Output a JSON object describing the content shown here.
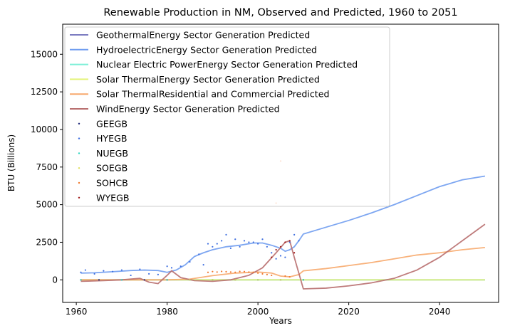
{
  "chart_data": {
    "type": "line",
    "title": "Renewable Production in NM, Observed and Predicted, 1960 to 2051",
    "xlabel": "Years",
    "ylabel": "BTU (Billions)",
    "xlim": [
      1957,
      2053
    ],
    "ylim": [
      -1500,
      17000
    ],
    "xticks": [
      1960,
      1980,
      2000,
      2020,
      2040
    ],
    "yticks": [
      0,
      2500,
      5000,
      7500,
      10000,
      12500,
      15000
    ],
    "legend_position": "upper-left",
    "grid": false,
    "series": [
      {
        "name": "GeothermalEnergy Sector Generation Predicted",
        "kind": "line",
        "color": "#7b7bc0",
        "x": [
          1961,
          1970,
          1980,
          1990,
          2000,
          2010,
          2020,
          2030,
          2040,
          2050
        ],
        "y": [
          0,
          0,
          0,
          0,
          0,
          0,
          0,
          0,
          0,
          0
        ]
      },
      {
        "name": "HydroelectricEnergy Sector Generation Predicted",
        "kind": "line",
        "color": "#6f9cf0",
        "x": [
          1961,
          1964,
          1968,
          1972,
          1975,
          1978,
          1980,
          1982,
          1984,
          1986,
          1988,
          1990,
          1993,
          1996,
          1999,
          2001,
          2003,
          2005,
          2006,
          2007,
          2008,
          2009,
          2010,
          2015,
          2020,
          2025,
          2030,
          2035,
          2040,
          2045,
          2050
        ],
        "y": [
          450,
          470,
          540,
          620,
          650,
          620,
          500,
          650,
          1000,
          1550,
          1800,
          2000,
          2200,
          2300,
          2450,
          2450,
          2300,
          2100,
          1900,
          2000,
          2200,
          2600,
          3050,
          3500,
          3950,
          4450,
          5000,
          5600,
          6200,
          6650,
          6900
        ]
      },
      {
        "name": "Nuclear Electric PowerEnergy Sector Generation Predicted",
        "kind": "line",
        "color": "#7fefd8",
        "x": [
          1961,
          1970,
          1980,
          1990,
          2000,
          2010,
          2020,
          2030,
          2040,
          2050
        ],
        "y": [
          0,
          0,
          0,
          0,
          0,
          0,
          0,
          0,
          0,
          0
        ]
      },
      {
        "name": "Solar ThermalEnergy Sector Generation Predicted",
        "kind": "line",
        "color": "#e4f37a",
        "x": [
          1961,
          1970,
          1980,
          1990,
          2000,
          2010,
          2020,
          2030,
          2040,
          2050
        ],
        "y": [
          0,
          0,
          0,
          0,
          0,
          0,
          0,
          0,
          0,
          0
        ]
      },
      {
        "name": "Solar ThermalResidential and Commercial Predicted",
        "kind": "line",
        "color": "#f7a86b",
        "x": [
          1961,
          1970,
          1980,
          1985,
          1990,
          1995,
          2000,
          2003,
          2005,
          2007,
          2009,
          2010,
          2015,
          2020,
          2025,
          2030,
          2035,
          2040,
          2045,
          2050
        ],
        "y": [
          0,
          0,
          0,
          50,
          280,
          450,
          520,
          450,
          250,
          200,
          350,
          600,
          750,
          950,
          1150,
          1400,
          1650,
          1800,
          2000,
          2150
        ]
      },
      {
        "name": "WindEnergy Sector Generation Predicted",
        "kind": "line",
        "color": "#b86e6e",
        "x": [
          1961,
          1966,
          1970,
          1974,
          1976,
          1978,
          1980,
          1981,
          1983,
          1986,
          1990,
          1994,
          1998,
          2001,
          2004,
          2006,
          2007,
          2008,
          2010,
          2015,
          2020,
          2025,
          2030,
          2035,
          2040,
          2045,
          2050
        ],
        "y": [
          -100,
          -50,
          0,
          100,
          -150,
          -250,
          300,
          600,
          150,
          -50,
          -100,
          0,
          300,
          800,
          1800,
          2500,
          2600,
          1500,
          -600,
          -550,
          -400,
          -200,
          100,
          650,
          1500,
          2600,
          3700
        ]
      },
      {
        "name": "GEEGB",
        "kind": "scatter",
        "color": "#1f2a7a",
        "x": [
          1961,
          1965,
          1970,
          1975,
          1980,
          1985,
          1990,
          1995,
          2000,
          2005,
          2010
        ],
        "y": [
          0,
          0,
          0,
          0,
          0,
          0,
          0,
          0,
          0,
          0,
          0
        ]
      },
      {
        "name": "HYEGB",
        "kind": "scatter",
        "color": "#3f6fe0",
        "x": [
          1961,
          1962,
          1964,
          1966,
          1968,
          1970,
          1972,
          1974,
          1976,
          1978,
          1980,
          1981,
          1983,
          1985,
          1987,
          1988,
          1989,
          1990,
          1991,
          1992,
          1993,
          1994,
          1995,
          1996,
          1997,
          1998,
          1999,
          2000,
          2001,
          2002,
          2003,
          2004,
          2005,
          2006,
          2007,
          2008,
          2009
        ],
        "y": [
          500,
          650,
          400,
          600,
          550,
          650,
          300,
          700,
          400,
          350,
          900,
          800,
          900,
          1200,
          1700,
          1000,
          2400,
          2200,
          2400,
          2600,
          3000,
          2100,
          2700,
          2200,
          2600,
          2500,
          2500,
          2400,
          2700,
          2200,
          1800,
          1400,
          1600,
          1500,
          2500,
          3000,
          2600
        ]
      },
      {
        "name": "NUEGB",
        "kind": "scatter",
        "color": "#2fd6c0",
        "x": [
          1961,
          1970,
          1980,
          1990,
          2000,
          2010
        ],
        "y": [
          0,
          0,
          0,
          0,
          0,
          0
        ]
      },
      {
        "name": "SOEGB",
        "kind": "scatter",
        "color": "#e0e060",
        "x": [
          1985,
          1990,
          1995,
          2000,
          2005
        ],
        "y": [
          0,
          0,
          0,
          0,
          0
        ]
      },
      {
        "name": "SOHCB",
        "kind": "scatter",
        "color": "#f07a30",
        "x": [
          1989,
          1990,
          1991,
          1992,
          1993,
          1994,
          1995,
          1996,
          1997,
          1998,
          1999,
          2000,
          2001,
          2002,
          2003,
          2004,
          2005,
          2006,
          2007
        ],
        "y": [
          500,
          550,
          520,
          560,
          540,
          520,
          500,
          560,
          550,
          520,
          500,
          450,
          400,
          350,
          300,
          5100,
          7900,
          250,
          200
        ]
      },
      {
        "name": "WYEGB",
        "kind": "scatter",
        "color": "#a01818",
        "x": [
          2003,
          2004,
          2005,
          2006,
          2007,
          2008
        ],
        "y": [
          1500,
          2000,
          2200,
          2500,
          2600,
          1800
        ]
      }
    ]
  }
}
